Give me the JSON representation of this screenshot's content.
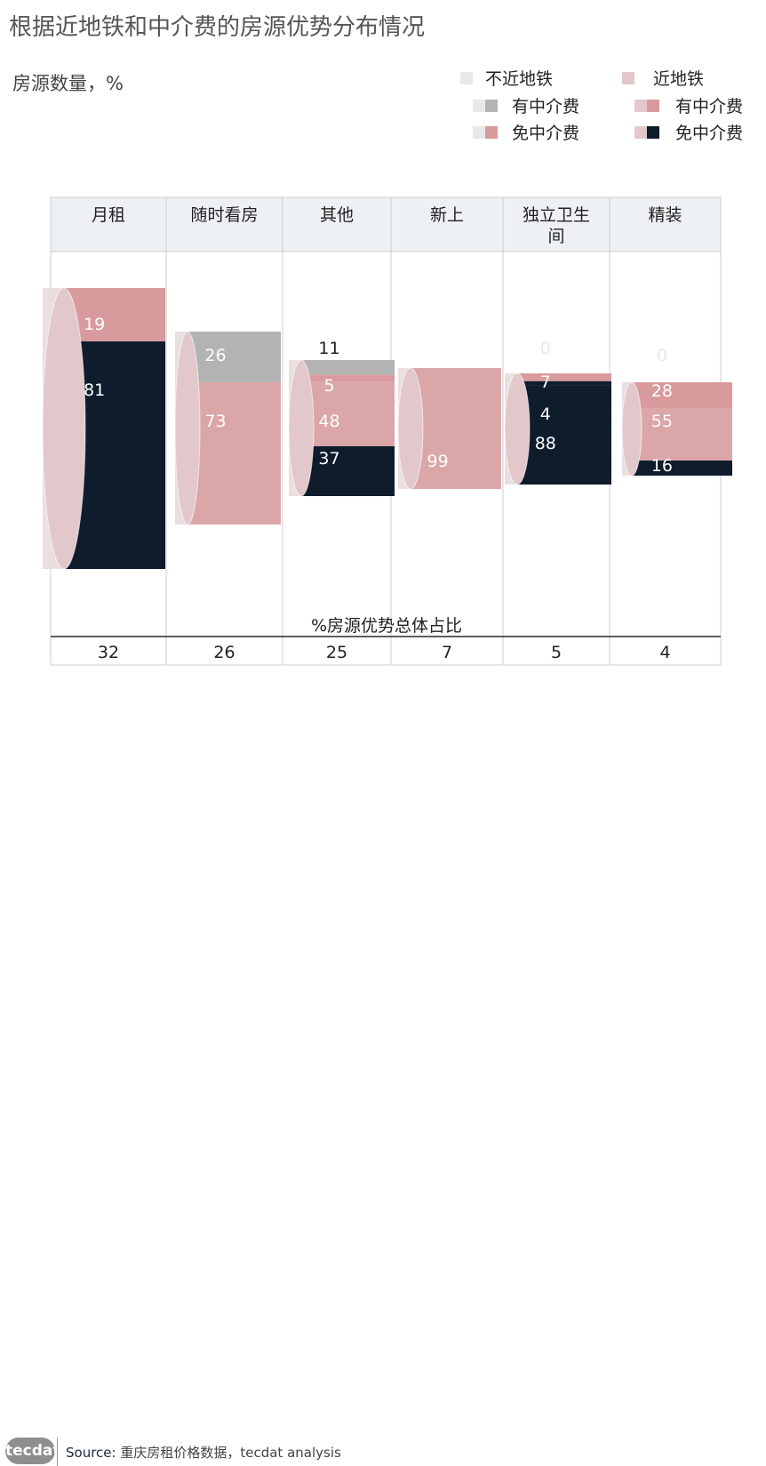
{
  "title": "根据近地铁和中介费的房源优势分布情况",
  "subtitle": "房源数量，%",
  "legend": {
    "far": "不近地铁",
    "near": "近地铁",
    "fee": "有中介费",
    "nofee": "免中介费"
  },
  "colors": {
    "far_light": "#e8e8e8",
    "near_light": "#e3c8cb",
    "far_fee": "#b3b3b3",
    "near_fee": "#d89a9d",
    "near_mid": "#dba6a8",
    "nofee": "#0e1c2c",
    "header_bg": "#eef1f4",
    "grid": "#cccccc"
  },
  "chart_data": {
    "type": "bar",
    "categories": [
      "月租",
      "随时看房",
      "其他",
      "新上",
      "独立卫生间",
      "精装"
    ],
    "segment_values": [
      [
        19,
        81
      ],
      [
        26,
        73
      ],
      [
        11,
        5,
        48,
        37
      ],
      [
        99
      ],
      [
        0,
        7,
        4,
        88
      ],
      [
        0,
        28,
        55,
        16
      ]
    ],
    "total_share": {
      "label": "%房源优势总体占比",
      "values": [
        32,
        26,
        25,
        7,
        5,
        4
      ]
    }
  },
  "source": {
    "logo": "tecdat",
    "label": "Source:",
    "text": "重庆房租价格数据，tecdat analysis"
  }
}
